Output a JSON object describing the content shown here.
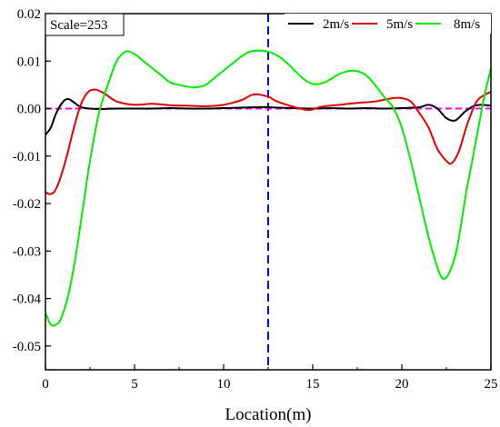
{
  "chart_data": {
    "type": "line",
    "xlabel": "Location(m)",
    "ylabel": "",
    "xlim": [
      0,
      25
    ],
    "ylim": [
      -0.055,
      0.02
    ],
    "xticks": [
      0,
      5,
      10,
      15,
      20,
      25
    ],
    "xtick_labels": [
      "0",
      "5",
      "10",
      "15",
      "20",
      "25"
    ],
    "yticks": [
      0.02,
      0.01,
      0.0,
      -0.01,
      -0.02,
      -0.03,
      -0.04,
      -0.05
    ],
    "ytick_labels": [
      "0.02",
      "0.01",
      "0.00",
      "-0.01",
      "-0.02",
      "-0.03",
      "-0.04",
      "-0.05"
    ],
    "grid": false,
    "legend_position": "top-right",
    "annotation": "Scale=253",
    "reference_lines": [
      {
        "orientation": "vertical",
        "x": 12.5,
        "color": "#0000ff",
        "style": "dashed"
      },
      {
        "orientation": "horizontal",
        "y": 0.0,
        "color": "#ff00ff",
        "style": "dashed"
      }
    ],
    "series": [
      {
        "name": "2m/s",
        "color": "#000000",
        "x": [
          0,
          0.3,
          0.6,
          1.0,
          1.3,
          1.6,
          2.0,
          2.5,
          3.0,
          4.0,
          5.0,
          6.0,
          7.0,
          8.0,
          9.0,
          10.0,
          11.0,
          12.0,
          12.5,
          13.0,
          14.0,
          15.0,
          16.0,
          17.0,
          18.0,
          19.0,
          20.0,
          21.0,
          21.5,
          22.0,
          22.5,
          23.0,
          23.5,
          24.0,
          24.5,
          25.0
        ],
        "y": [
          -0.0055,
          -0.004,
          -0.001,
          0.0015,
          0.002,
          0.0013,
          0.0003,
          0.0,
          -0.0001,
          0.0,
          0.0,
          0.0,
          0.0001,
          0.0,
          0.0,
          0.0001,
          0.0002,
          0.0003,
          0.0003,
          0.0002,
          0.0001,
          0.0,
          0.0001,
          0.0,
          0.0001,
          0.0,
          0.0001,
          0.0003,
          0.0008,
          0.0,
          -0.002,
          -0.0025,
          -0.0008,
          0.0005,
          0.0008,
          0.0006
        ]
      },
      {
        "name": "5m/s",
        "color": "#e00000",
        "x": [
          0,
          0.2,
          0.5,
          0.8,
          1.2,
          1.6,
          2.0,
          2.4,
          2.8,
          3.3,
          4.0,
          5.0,
          6.0,
          7.0,
          8.0,
          9.0,
          10.0,
          11.0,
          11.7,
          12.5,
          13.0,
          14.0,
          14.8,
          15.5,
          16.5,
          17.5,
          18.5,
          19.5,
          20.0,
          20.5,
          21.0,
          21.5,
          22.0,
          22.5,
          22.8,
          23.2,
          23.7,
          24.2,
          24.7,
          25.0
        ],
        "y": [
          -0.0175,
          -0.018,
          -0.0175,
          -0.015,
          -0.01,
          -0.004,
          0.001,
          0.0035,
          0.004,
          0.0032,
          0.0015,
          0.0008,
          0.001,
          0.0007,
          0.0006,
          0.0005,
          0.0008,
          0.0018,
          0.003,
          0.0025,
          0.0015,
          0.0003,
          -0.0003,
          0.0004,
          0.0008,
          0.0012,
          0.0015,
          0.0022,
          0.0022,
          0.0015,
          -0.001,
          -0.004,
          -0.0085,
          -0.011,
          -0.0115,
          -0.009,
          -0.003,
          0.0015,
          0.003,
          0.0035
        ]
      },
      {
        "name": "8m/s",
        "color": "#00ee00",
        "x": [
          0,
          0.3,
          0.6,
          0.9,
          1.3,
          1.7,
          2.1,
          2.5,
          3.0,
          3.5,
          4.0,
          4.5,
          5.0,
          5.5,
          6.0,
          6.5,
          7.0,
          7.5,
          8.0,
          8.5,
          9.0,
          9.5,
          10.0,
          10.5,
          11.0,
          11.5,
          12.0,
          12.5,
          13.0,
          13.5,
          14.0,
          14.5,
          15.0,
          15.5,
          16.0,
          16.5,
          17.0,
          17.5,
          18.0,
          18.5,
          19.0,
          19.5,
          20.0,
          20.5,
          21.0,
          21.5,
          22.0,
          22.3,
          22.6,
          23.0,
          23.3,
          23.6,
          24.0,
          24.3,
          24.6,
          25.0
        ],
        "y": [
          -0.043,
          -0.0455,
          -0.0455,
          -0.044,
          -0.039,
          -0.031,
          -0.021,
          -0.011,
          -0.001,
          0.005,
          0.01,
          0.012,
          0.0115,
          0.01,
          0.0085,
          0.007,
          0.0055,
          0.005,
          0.0046,
          0.0045,
          0.005,
          0.0065,
          0.008,
          0.0095,
          0.011,
          0.012,
          0.0122,
          0.012,
          0.0112,
          0.0098,
          0.008,
          0.0062,
          0.0052,
          0.0053,
          0.0062,
          0.0073,
          0.0079,
          0.0079,
          0.007,
          0.005,
          0.0025,
          0.0003,
          -0.004,
          -0.011,
          -0.019,
          -0.027,
          -0.0335,
          -0.0358,
          -0.035,
          -0.031,
          -0.025,
          -0.018,
          -0.01,
          -0.004,
          0.002,
          0.0085
        ]
      }
    ]
  }
}
